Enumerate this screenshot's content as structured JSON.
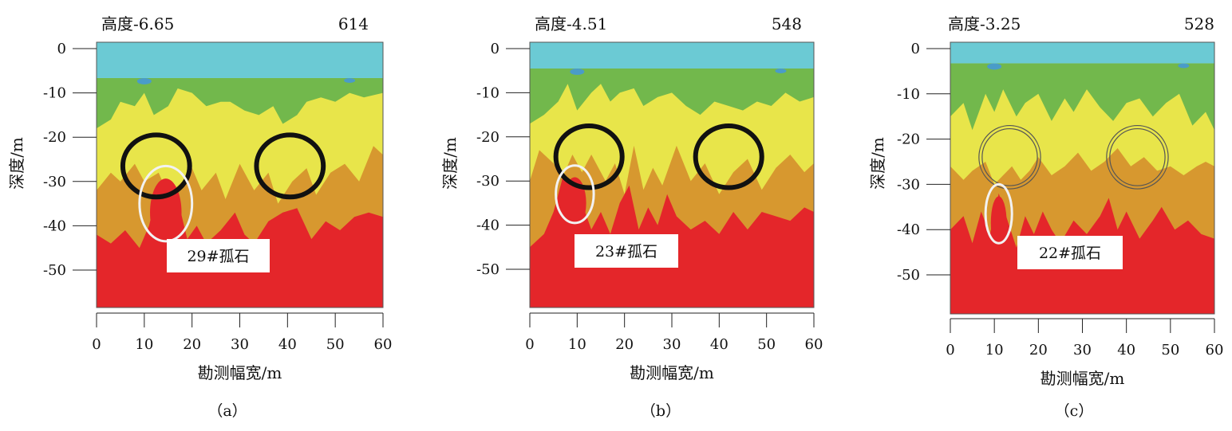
{
  "chart_data": [
    {
      "type": "heatmap",
      "panel_label": "（a）",
      "title": "高度-6.65",
      "title_right": "614",
      "xlabel": "勘测幅宽/m",
      "ylabel": "深度/m",
      "xticks": [
        "0",
        "10",
        "20",
        "30",
        "40",
        "50",
        "60"
      ],
      "yticks": [
        "0",
        "-10",
        "-20",
        "-30",
        "-40",
        "-50"
      ],
      "xlim": [
        0,
        60
      ],
      "ylim": [
        -59,
        0
      ],
      "surface_layer_bottom": -6.65,
      "boulder_label": "29#孤石",
      "boulder": {
        "x": 14.5,
        "y": -35,
        "rx": 5.5,
        "ry": 8.5
      },
      "marked_zones": [
        {
          "x": 12.5,
          "y": -26.5,
          "rx": 7,
          "ry": 7
        },
        {
          "x": 40.5,
          "y": -26.5,
          "rx": 7,
          "ry": 7
        }
      ]
    },
    {
      "type": "heatmap",
      "panel_label": "（b）",
      "title": "高度-4.51",
      "title_right": "548",
      "xlabel": "勘测幅宽/m",
      "ylabel": "深度/m",
      "xticks": [
        "0",
        "10",
        "20",
        "30",
        "40",
        "50",
        "60"
      ],
      "yticks": [
        "0",
        "-10",
        "-20",
        "-30",
        "-40",
        "-50"
      ],
      "xlim": [
        0,
        60
      ],
      "ylim": [
        -59,
        0
      ],
      "surface_layer_bottom": -4.51,
      "boulder_label": "23#孤石",
      "boulder": {
        "x": 9.5,
        "y": -33,
        "rx": 4,
        "ry": 6.5
      },
      "marked_zones": [
        {
          "x": 12.5,
          "y": -24.5,
          "rx": 7,
          "ry": 7
        },
        {
          "x": 42,
          "y": -24.5,
          "rx": 7,
          "ry": 7
        }
      ]
    },
    {
      "type": "heatmap",
      "panel_label": "（c）",
      "title": "高度-3.25",
      "title_right": "528",
      "xlabel": "勘测幅宽/m",
      "ylabel": "深度/m",
      "xticks": [
        "0",
        "10",
        "20",
        "30",
        "40",
        "50",
        "60"
      ],
      "yticks": [
        "0",
        "-10",
        "-20",
        "-30",
        "-40",
        "-50"
      ],
      "xlim": [
        0,
        60
      ],
      "ylim": [
        -60,
        0
      ],
      "surface_layer_bottom": -3.25,
      "boulder_label": "22#孤石",
      "boulder": {
        "x": 11,
        "y": -36.5,
        "rx": 3,
        "ry": 6.5
      },
      "marked_zones": [
        {
          "x": 13.5,
          "y": -24,
          "rx": 7,
          "ry": 7
        },
        {
          "x": 42.5,
          "y": -24,
          "rx": 7,
          "ry": 7
        }
      ]
    }
  ],
  "colors": {
    "surface": "#6bcad4",
    "green": "#72b84c",
    "yellow": "#e8e54a",
    "orange": "#d7982f",
    "red": "#e4262a",
    "black_circle": "#111111",
    "white_circle": "#f2f2f2",
    "double_circle": "#555555",
    "blue_patch": "#4a9cc8"
  }
}
